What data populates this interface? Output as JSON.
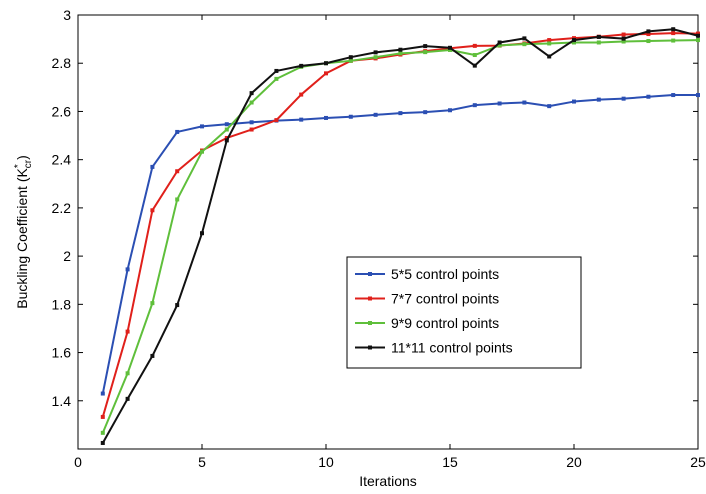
{
  "chart_data": {
    "type": "line",
    "xlabel": "Iterations",
    "ylabel_main": "Buckling Coefficient (K",
    "ylabel_sup": "*",
    "ylabel_sub": "cr",
    "ylabel_close": ")",
    "xlim": [
      0,
      25
    ],
    "ylim": [
      1.2,
      3.0
    ],
    "xticks": [
      "0",
      "5",
      "10",
      "15",
      "20",
      "25"
    ],
    "yticks": [
      "1.4",
      "1.6",
      "1.8",
      "2",
      "2.2",
      "2.4",
      "2.6",
      "2.8",
      "3"
    ],
    "legend_position": "center-right",
    "x": [
      1,
      2,
      3,
      4,
      5,
      6,
      7,
      8,
      9,
      10,
      11,
      12,
      13,
      14,
      15,
      16,
      17,
      18,
      19,
      20,
      21,
      22,
      23,
      24,
      25
    ],
    "series": [
      {
        "name": "5*5 control points",
        "color": "#2b4fb3",
        "values": [
          1.43,
          1.945,
          2.37,
          2.515,
          2.538,
          2.547,
          2.555,
          2.562,
          2.566,
          2.573,
          2.578,
          2.586,
          2.593,
          2.597,
          2.605,
          2.626,
          2.633,
          2.637,
          2.622,
          2.641,
          2.649,
          2.653,
          2.661,
          2.668,
          2.668
        ]
      },
      {
        "name": "7*7 control points",
        "color": "#e0201b",
        "values": [
          1.333,
          1.687,
          2.19,
          2.352,
          2.438,
          2.49,
          2.525,
          2.564,
          2.67,
          2.758,
          2.81,
          2.82,
          2.836,
          2.85,
          2.862,
          2.872,
          2.873,
          2.882,
          2.896,
          2.904,
          2.91,
          2.919,
          2.921,
          2.925,
          2.923
        ]
      },
      {
        "name": "9*9 control points",
        "color": "#5fbf3b",
        "values": [
          1.267,
          1.514,
          1.805,
          2.235,
          2.433,
          2.525,
          2.637,
          2.735,
          2.785,
          2.8,
          2.81,
          2.825,
          2.841,
          2.846,
          2.855,
          2.834,
          2.874,
          2.879,
          2.882,
          2.886,
          2.886,
          2.89,
          2.892,
          2.894,
          2.896
        ]
      },
      {
        "name": "11*11 control points",
        "color": "#111111",
        "values": [
          1.225,
          1.408,
          1.586,
          1.797,
          2.095,
          2.48,
          2.676,
          2.768,
          2.789,
          2.8,
          2.825,
          2.845,
          2.856,
          2.871,
          2.864,
          2.79,
          2.886,
          2.903,
          2.828,
          2.896,
          2.909,
          2.902,
          2.932,
          2.941,
          2.914
        ]
      }
    ]
  }
}
